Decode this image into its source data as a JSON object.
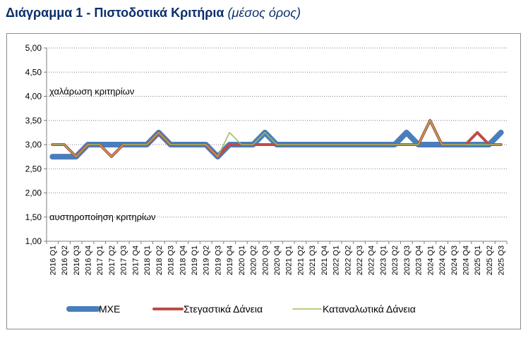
{
  "title": {
    "main": "Διάγραμμα 1 - Πιστοδοτικά Κριτήρια",
    "sub": "(μέσος όρος)"
  },
  "chart_data": {
    "type": "line",
    "ylim": [
      1.0,
      5.0
    ],
    "yticks": [
      1.0,
      1.5,
      2.0,
      2.5,
      3.0,
      3.5,
      4.0,
      4.5,
      5.0
    ],
    "ytick_labels": [
      "1,00",
      "1,50",
      "2,00",
      "2,50",
      "3,00",
      "3,50",
      "4,00",
      "4,50",
      "5,00"
    ],
    "grid": "horizontal-dotted",
    "legend": "bottom",
    "annotations": [
      "χαλάρωση κριτηρίων",
      "αυστηροποίηση κριτηρίων"
    ],
    "categories": [
      "2016 Q1",
      "2016 Q2",
      "2016 Q3",
      "2016 Q4",
      "2017 Q1",
      "2017 Q2",
      "2017 Q3",
      "2017 Q4",
      "2018 Q1",
      "2018 Q2",
      "2018 Q3",
      "2018 Q4",
      "2019 Q1",
      "2019 Q2",
      "2019 Q3",
      "2019 Q4",
      "2020 Q1",
      "2020 Q2",
      "2020 Q3",
      "2020 Q4",
      "2021 Q1",
      "2021 Q2",
      "2021 Q3",
      "2021 Q4",
      "2022 Q1",
      "2022 Q2",
      "2022 Q3",
      "2022 Q4",
      "2023 Q1",
      "2023 Q2",
      "2023 Q3",
      "2023 Q4",
      "2024 Q1",
      "2024 Q2",
      "2024 Q3",
      "2024 Q4",
      "2025 Q1",
      "2025 Q2",
      "2025 Q3"
    ],
    "series": [
      {
        "name": "ΜΧΕ",
        "color": "#4a7ebb",
        "width": 8,
        "values": [
          2.75,
          2.75,
          2.75,
          3.0,
          3.0,
          3.0,
          3.0,
          3.0,
          3.0,
          3.25,
          3.0,
          3.0,
          3.0,
          3.0,
          2.75,
          3.0,
          3.0,
          3.0,
          3.25,
          3.0,
          3.0,
          3.0,
          3.0,
          3.0,
          3.0,
          3.0,
          3.0,
          3.0,
          3.0,
          3.0,
          3.25,
          3.0,
          3.0,
          3.0,
          3.0,
          3.0,
          3.0,
          3.0,
          3.25
        ]
      },
      {
        "name": "Στεγαστικά Δάνεια",
        "color": "#be4b48",
        "width": 4,
        "values": [
          3.0,
          3.0,
          2.75,
          3.0,
          3.0,
          2.75,
          3.0,
          3.0,
          3.0,
          3.25,
          3.0,
          3.0,
          3.0,
          3.0,
          2.75,
          3.0,
          3.0,
          3.0,
          3.0,
          3.0,
          3.0,
          3.0,
          3.0,
          3.0,
          3.0,
          3.0,
          3.0,
          3.0,
          3.0,
          3.0,
          3.0,
          3.0,
          3.5,
          3.0,
          3.0,
          3.0,
          3.25,
          3.0,
          3.0
        ]
      },
      {
        "name": "Καταναλωτικά Δάνεια",
        "color": "#9bbb59",
        "width": 1.5,
        "values": [
          3.0,
          3.0,
          2.75,
          3.0,
          3.0,
          2.75,
          3.0,
          3.0,
          3.0,
          3.25,
          3.0,
          3.0,
          3.0,
          3.0,
          2.75,
          3.25,
          3.0,
          3.0,
          3.25,
          3.0,
          3.0,
          3.0,
          3.0,
          3.0,
          3.0,
          3.0,
          3.0,
          3.0,
          3.0,
          3.0,
          3.0,
          3.0,
          3.5,
          3.0,
          3.0,
          3.0,
          3.0,
          3.0,
          3.0
        ]
      }
    ]
  }
}
